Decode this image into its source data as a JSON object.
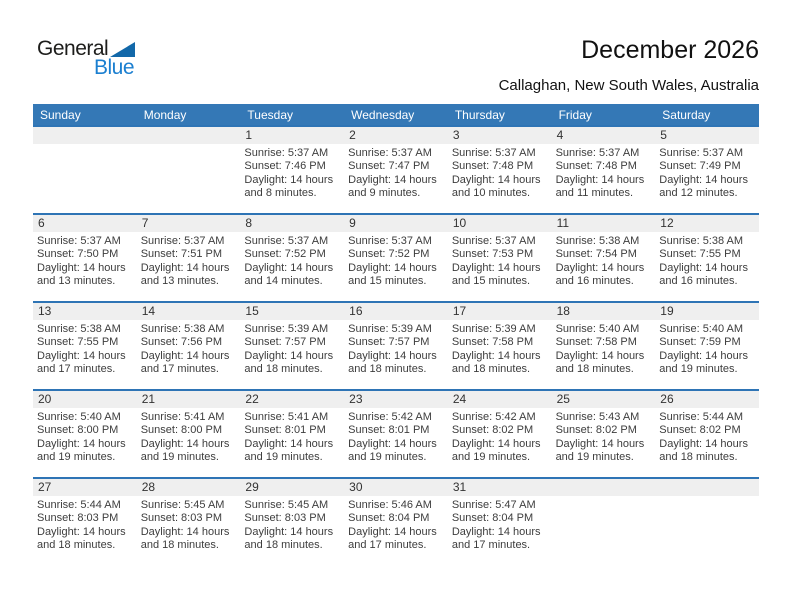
{
  "logo": {
    "part1": "General",
    "part2": "Blue"
  },
  "header": {
    "title": "December 2026",
    "subtitle": "Callaghan, New South Wales, Australia"
  },
  "colors": {
    "header_bar": "#3478b6",
    "week_border": "#2e74b5",
    "band_bg": "#efefef",
    "accent_blue": "#1b7fd0"
  },
  "calendar": {
    "day_headers": [
      "Sunday",
      "Monday",
      "Tuesday",
      "Wednesday",
      "Thursday",
      "Friday",
      "Saturday"
    ],
    "labels": {
      "sunrise": "Sunrise:",
      "sunset": "Sunset:",
      "daylight": "Daylight:"
    },
    "weeks": [
      [
        null,
        null,
        {
          "day": "1",
          "sunrise": "5:37 AM",
          "sunset": "7:46 PM",
          "daylight": "14 hours and 8 minutes."
        },
        {
          "day": "2",
          "sunrise": "5:37 AM",
          "sunset": "7:47 PM",
          "daylight": "14 hours and 9 minutes."
        },
        {
          "day": "3",
          "sunrise": "5:37 AM",
          "sunset": "7:48 PM",
          "daylight": "14 hours and 10 minutes."
        },
        {
          "day": "4",
          "sunrise": "5:37 AM",
          "sunset": "7:48 PM",
          "daylight": "14 hours and 11 minutes."
        },
        {
          "day": "5",
          "sunrise": "5:37 AM",
          "sunset": "7:49 PM",
          "daylight": "14 hours and 12 minutes."
        }
      ],
      [
        {
          "day": "6",
          "sunrise": "5:37 AM",
          "sunset": "7:50 PM",
          "daylight": "14 hours and 13 minutes."
        },
        {
          "day": "7",
          "sunrise": "5:37 AM",
          "sunset": "7:51 PM",
          "daylight": "14 hours and 13 minutes."
        },
        {
          "day": "8",
          "sunrise": "5:37 AM",
          "sunset": "7:52 PM",
          "daylight": "14 hours and 14 minutes."
        },
        {
          "day": "9",
          "sunrise": "5:37 AM",
          "sunset": "7:52 PM",
          "daylight": "14 hours and 15 minutes."
        },
        {
          "day": "10",
          "sunrise": "5:37 AM",
          "sunset": "7:53 PM",
          "daylight": "14 hours and 15 minutes."
        },
        {
          "day": "11",
          "sunrise": "5:38 AM",
          "sunset": "7:54 PM",
          "daylight": "14 hours and 16 minutes."
        },
        {
          "day": "12",
          "sunrise": "5:38 AM",
          "sunset": "7:55 PM",
          "daylight": "14 hours and 16 minutes."
        }
      ],
      [
        {
          "day": "13",
          "sunrise": "5:38 AM",
          "sunset": "7:55 PM",
          "daylight": "14 hours and 17 minutes."
        },
        {
          "day": "14",
          "sunrise": "5:38 AM",
          "sunset": "7:56 PM",
          "daylight": "14 hours and 17 minutes."
        },
        {
          "day": "15",
          "sunrise": "5:39 AM",
          "sunset": "7:57 PM",
          "daylight": "14 hours and 18 minutes."
        },
        {
          "day": "16",
          "sunrise": "5:39 AM",
          "sunset": "7:57 PM",
          "daylight": "14 hours and 18 minutes."
        },
        {
          "day": "17",
          "sunrise": "5:39 AM",
          "sunset": "7:58 PM",
          "daylight": "14 hours and 18 minutes."
        },
        {
          "day": "18",
          "sunrise": "5:40 AM",
          "sunset": "7:58 PM",
          "daylight": "14 hours and 18 minutes."
        },
        {
          "day": "19",
          "sunrise": "5:40 AM",
          "sunset": "7:59 PM",
          "daylight": "14 hours and 19 minutes."
        }
      ],
      [
        {
          "day": "20",
          "sunrise": "5:40 AM",
          "sunset": "8:00 PM",
          "daylight": "14 hours and 19 minutes."
        },
        {
          "day": "21",
          "sunrise": "5:41 AM",
          "sunset": "8:00 PM",
          "daylight": "14 hours and 19 minutes."
        },
        {
          "day": "22",
          "sunrise": "5:41 AM",
          "sunset": "8:01 PM",
          "daylight": "14 hours and 19 minutes."
        },
        {
          "day": "23",
          "sunrise": "5:42 AM",
          "sunset": "8:01 PM",
          "daylight": "14 hours and 19 minutes."
        },
        {
          "day": "24",
          "sunrise": "5:42 AM",
          "sunset": "8:02 PM",
          "daylight": "14 hours and 19 minutes."
        },
        {
          "day": "25",
          "sunrise": "5:43 AM",
          "sunset": "8:02 PM",
          "daylight": "14 hours and 19 minutes."
        },
        {
          "day": "26",
          "sunrise": "5:44 AM",
          "sunset": "8:02 PM",
          "daylight": "14 hours and 18 minutes."
        }
      ],
      [
        {
          "day": "27",
          "sunrise": "5:44 AM",
          "sunset": "8:03 PM",
          "daylight": "14 hours and 18 minutes."
        },
        {
          "day": "28",
          "sunrise": "5:45 AM",
          "sunset": "8:03 PM",
          "daylight": "14 hours and 18 minutes."
        },
        {
          "day": "29",
          "sunrise": "5:45 AM",
          "sunset": "8:03 PM",
          "daylight": "14 hours and 18 minutes."
        },
        {
          "day": "30",
          "sunrise": "5:46 AM",
          "sunset": "8:04 PM",
          "daylight": "14 hours and 17 minutes."
        },
        {
          "day": "31",
          "sunrise": "5:47 AM",
          "sunset": "8:04 PM",
          "daylight": "14 hours and 17 minutes."
        },
        null,
        null
      ]
    ]
  }
}
